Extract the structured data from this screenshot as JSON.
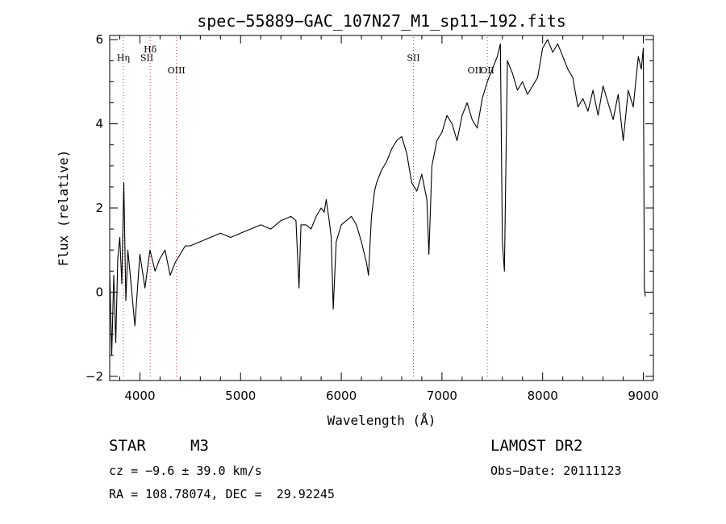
{
  "chart_data": {
    "type": "line",
    "title": "spec−55889−GAC_107N27_M1_sp11−192.fits",
    "xlabel": "Wavelength (Å)",
    "ylabel": "Flux (relative)",
    "xlim": [
      3700,
      9100
    ],
    "ylim": [
      -2.1,
      6.1
    ],
    "x_ticks": [
      4000,
      5000,
      6000,
      7000,
      8000,
      9000
    ],
    "y_ticks": [
      -2,
      0,
      2,
      4,
      6
    ],
    "grid": false,
    "legend": "none",
    "spectral_lines": [
      {
        "label": "Hη",
        "x": 3835,
        "label_y": 5.5
      },
      {
        "label": "Hδ",
        "x": 4102,
        "label_y": 5.7
      },
      {
        "label": "OIII",
        "x": 4363,
        "label_y": 5.2
      },
      {
        "label": "SII",
        "x": 4069,
        "label_y": 5.5,
        "show_line": false
      },
      {
        "label": "SII",
        "x": 6716,
        "label_y": 5.5
      },
      {
        "label": "OII",
        "x": 7325,
        "label_y": 5.2,
        "show_line": false
      },
      {
        "label": "OII",
        "x": 7450,
        "label_y": 5.2
      }
    ],
    "series": [
      {
        "color": "#000000",
        "x": [
          3700,
          3720,
          3740,
          3760,
          3780,
          3800,
          3820,
          3840,
          3860,
          3880,
          3900,
          3950,
          4000,
          4050,
          4100,
          4150,
          4200,
          4250,
          4300,
          4350,
          4400,
          4450,
          4500,
          4600,
          4700,
          4800,
          4900,
          5000,
          5100,
          5200,
          5300,
          5400,
          5500,
          5550,
          5580,
          5600,
          5650,
          5700,
          5750,
          5800,
          5830,
          5850,
          5880,
          5900,
          5920,
          5950,
          6000,
          6050,
          6100,
          6150,
          6200,
          6250,
          6270,
          6300,
          6330,
          6350,
          6400,
          6450,
          6500,
          6550,
          6600,
          6650,
          6700,
          6750,
          6800,
          6850,
          6870,
          6900,
          6950,
          7000,
          7050,
          7100,
          7150,
          7200,
          7250,
          7300,
          7350,
          7400,
          7450,
          7500,
          7550,
          7580,
          7600,
          7620,
          7650,
          7700,
          7750,
          7800,
          7850,
          7900,
          7950,
          8000,
          8050,
          8100,
          8150,
          8200,
          8250,
          8300,
          8350,
          8400,
          8450,
          8500,
          8550,
          8600,
          8650,
          8700,
          8750,
          8800,
          8850,
          8900,
          8950,
          8980,
          9000,
          9010,
          9020
        ],
        "values": [
          0.5,
          -1.5,
          0.4,
          -1.2,
          0.8,
          1.3,
          0.2,
          2.6,
          -0.2,
          1.0,
          0.5,
          -0.8,
          0.9,
          0.1,
          1.0,
          0.5,
          0.8,
          1.0,
          0.4,
          0.7,
          0.9,
          1.1,
          1.1,
          1.2,
          1.3,
          1.4,
          1.3,
          1.4,
          1.5,
          1.6,
          1.5,
          1.7,
          1.8,
          1.7,
          0.1,
          1.6,
          1.6,
          1.5,
          1.8,
          2.0,
          1.9,
          2.2,
          1.7,
          1.3,
          -0.4,
          1.2,
          1.6,
          1.7,
          1.8,
          1.6,
          1.2,
          0.7,
          0.4,
          1.8,
          2.4,
          2.6,
          2.9,
          3.1,
          3.4,
          3.6,
          3.7,
          3.3,
          2.6,
          2.4,
          2.8,
          2.2,
          0.9,
          3.0,
          3.6,
          3.8,
          4.2,
          4.0,
          3.6,
          4.2,
          4.5,
          4.1,
          3.9,
          4.6,
          5.0,
          5.3,
          5.6,
          5.9,
          1.2,
          0.5,
          5.5,
          5.2,
          4.8,
          5.0,
          4.7,
          4.9,
          5.1,
          5.8,
          6.0,
          5.7,
          5.9,
          5.6,
          5.3,
          5.1,
          4.4,
          4.6,
          4.3,
          4.8,
          4.2,
          4.9,
          4.5,
          4.1,
          4.7,
          3.6,
          4.8,
          4.4,
          5.6,
          5.3,
          5.8,
          0.1,
          -0.1
        ]
      }
    ]
  },
  "info": {
    "object_class": "STAR",
    "subclass": "M3",
    "survey": "LAMOST DR2",
    "redshift": "cz = −9.6 ± 39.0 km/s",
    "obs_date": "Obs−Date: 20111123",
    "coords": "RA = 108.78074, DEC =  29.92245"
  }
}
